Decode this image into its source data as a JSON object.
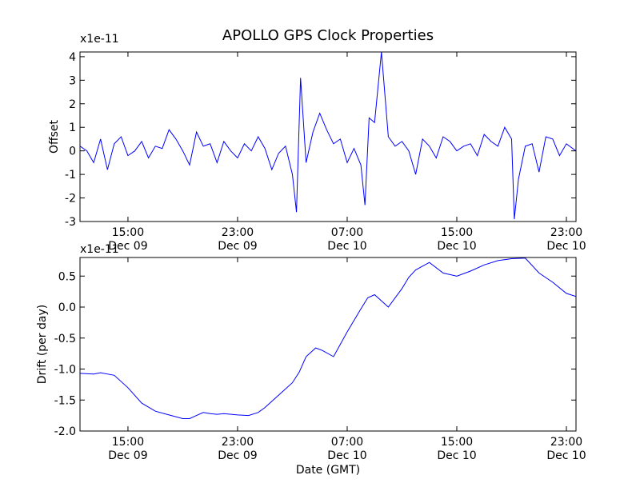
{
  "title": "APOLLO GPS Clock Properties",
  "chart_data": [
    {
      "type": "line",
      "title": "APOLLO GPS Clock Properties",
      "ylabel": "Offset",
      "xlabel": "",
      "multiplier_label": "x1e-11",
      "ylim": [
        -3,
        4.2
      ],
      "yticks": [
        -3,
        -2,
        -1,
        0,
        1,
        2,
        3,
        4
      ],
      "yticklabels": [
        "-3",
        "-2",
        "-1",
        "0",
        "1",
        "2",
        "3",
        "4"
      ],
      "xlim_hours": [
        11.5,
        47.7
      ],
      "xticks_hours": [
        15,
        23,
        31,
        39,
        47
      ],
      "xticklabels": [
        {
          "time": "15:00",
          "date": "Dec 09"
        },
        {
          "time": "23:00",
          "date": "Dec 09"
        },
        {
          "time": "07:00",
          "date": "Dec 10"
        },
        {
          "time": "15:00",
          "date": "Dec 10"
        },
        {
          "time": "23:00",
          "date": "Dec 10"
        }
      ],
      "color": "#0000ff",
      "series": [
        {
          "x": [
            11.5,
            12.0,
            12.5,
            13.0,
            13.5,
            14.0,
            14.5,
            15.0,
            15.5,
            16.0,
            16.5,
            17.0,
            17.5,
            18.0,
            18.5,
            19.0,
            19.5,
            20.0,
            20.5,
            21.0,
            21.5,
            22.0,
            22.5,
            23.0,
            23.5,
            24.0,
            24.5,
            25.0,
            25.5,
            26.0,
            26.5,
            27.0,
            27.3,
            27.6,
            28.0,
            28.5,
            29.0,
            29.5,
            30.0,
            30.5,
            31.0,
            31.5,
            32.0,
            32.3,
            32.6,
            33.0,
            33.5,
            34.0,
            34.5,
            35.0,
            35.5,
            36.0,
            36.5,
            37.0,
            37.5,
            38.0,
            38.5,
            39.0,
            39.5,
            40.0,
            40.5,
            41.0,
            41.5,
            42.0,
            42.5,
            43.0,
            43.2,
            43.5,
            44.0,
            44.5,
            45.0,
            45.5,
            46.0,
            46.5,
            47.0,
            47.7
          ],
          "y": [
            0.2,
            0.0,
            -0.5,
            0.5,
            -0.8,
            0.3,
            0.6,
            -0.2,
            0.0,
            0.4,
            -0.3,
            0.2,
            0.1,
            0.9,
            0.5,
            0.0,
            -0.6,
            0.8,
            0.2,
            0.3,
            -0.5,
            0.4,
            0.0,
            -0.3,
            0.3,
            0.0,
            0.6,
            0.1,
            -0.8,
            -0.1,
            0.2,
            -1.0,
            -2.6,
            3.1,
            -0.5,
            0.8,
            1.6,
            0.9,
            0.3,
            0.5,
            -0.5,
            0.1,
            -0.6,
            -2.3,
            1.4,
            1.2,
            4.2,
            0.6,
            0.2,
            0.4,
            0.0,
            -1.0,
            0.5,
            0.2,
            -0.3,
            0.6,
            0.4,
            0.0,
            0.2,
            0.3,
            -0.2,
            0.7,
            0.4,
            0.2,
            1.0,
            0.5,
            -2.9,
            -1.2,
            0.2,
            0.3,
            -0.9,
            0.6,
            0.5,
            -0.2,
            0.3,
            0.0
          ]
        }
      ]
    },
    {
      "type": "line",
      "ylabel": "Drift (per day)",
      "xlabel": "Date (GMT)",
      "multiplier_label": "x1e-11",
      "ylim": [
        -2.0,
        0.8
      ],
      "yticks": [
        -2.0,
        -1.5,
        -1.0,
        -0.5,
        0.0,
        0.5
      ],
      "yticklabels": [
        "-2.0",
        "-1.5",
        "-1.0",
        "-0.5",
        "0.0",
        "0.5"
      ],
      "xlim_hours": [
        11.5,
        47.7
      ],
      "xticks_hours": [
        15,
        23,
        31,
        39,
        47
      ],
      "xticklabels": [
        {
          "time": "15:00",
          "date": "Dec 09"
        },
        {
          "time": "23:00",
          "date": "Dec 09"
        },
        {
          "time": "07:00",
          "date": "Dec 10"
        },
        {
          "time": "15:00",
          "date": "Dec 10"
        },
        {
          "time": "23:00",
          "date": "Dec 10"
        }
      ],
      "color": "#0000ff",
      "series": [
        {
          "x": [
            11.5,
            12.5,
            13.0,
            14.0,
            15.0,
            16.0,
            17.0,
            18.0,
            19.0,
            19.5,
            20.0,
            20.5,
            21.0,
            21.5,
            22.0,
            23.0,
            23.8,
            24.5,
            25.0,
            26.0,
            27.0,
            27.5,
            28.0,
            28.7,
            29.2,
            30.0,
            31.0,
            32.0,
            32.5,
            33.0,
            34.0,
            35.0,
            35.5,
            36.0,
            37.0,
            38.0,
            39.0,
            40.0,
            41.0,
            42.0,
            43.0,
            44.0,
            45.0,
            46.0,
            47.0,
            47.7
          ],
          "y": [
            -1.07,
            -1.08,
            -1.06,
            -1.1,
            -1.3,
            -1.55,
            -1.68,
            -1.74,
            -1.8,
            -1.8,
            -1.75,
            -1.7,
            -1.72,
            -1.73,
            -1.72,
            -1.74,
            -1.75,
            -1.7,
            -1.62,
            -1.42,
            -1.22,
            -1.05,
            -0.8,
            -0.66,
            -0.7,
            -0.8,
            -0.4,
            -0.03,
            0.15,
            0.2,
            0.0,
            0.3,
            0.48,
            0.6,
            0.72,
            0.55,
            0.5,
            0.58,
            0.68,
            0.75,
            0.78,
            0.79,
            0.55,
            0.4,
            0.22,
            0.17
          ]
        }
      ]
    }
  ]
}
